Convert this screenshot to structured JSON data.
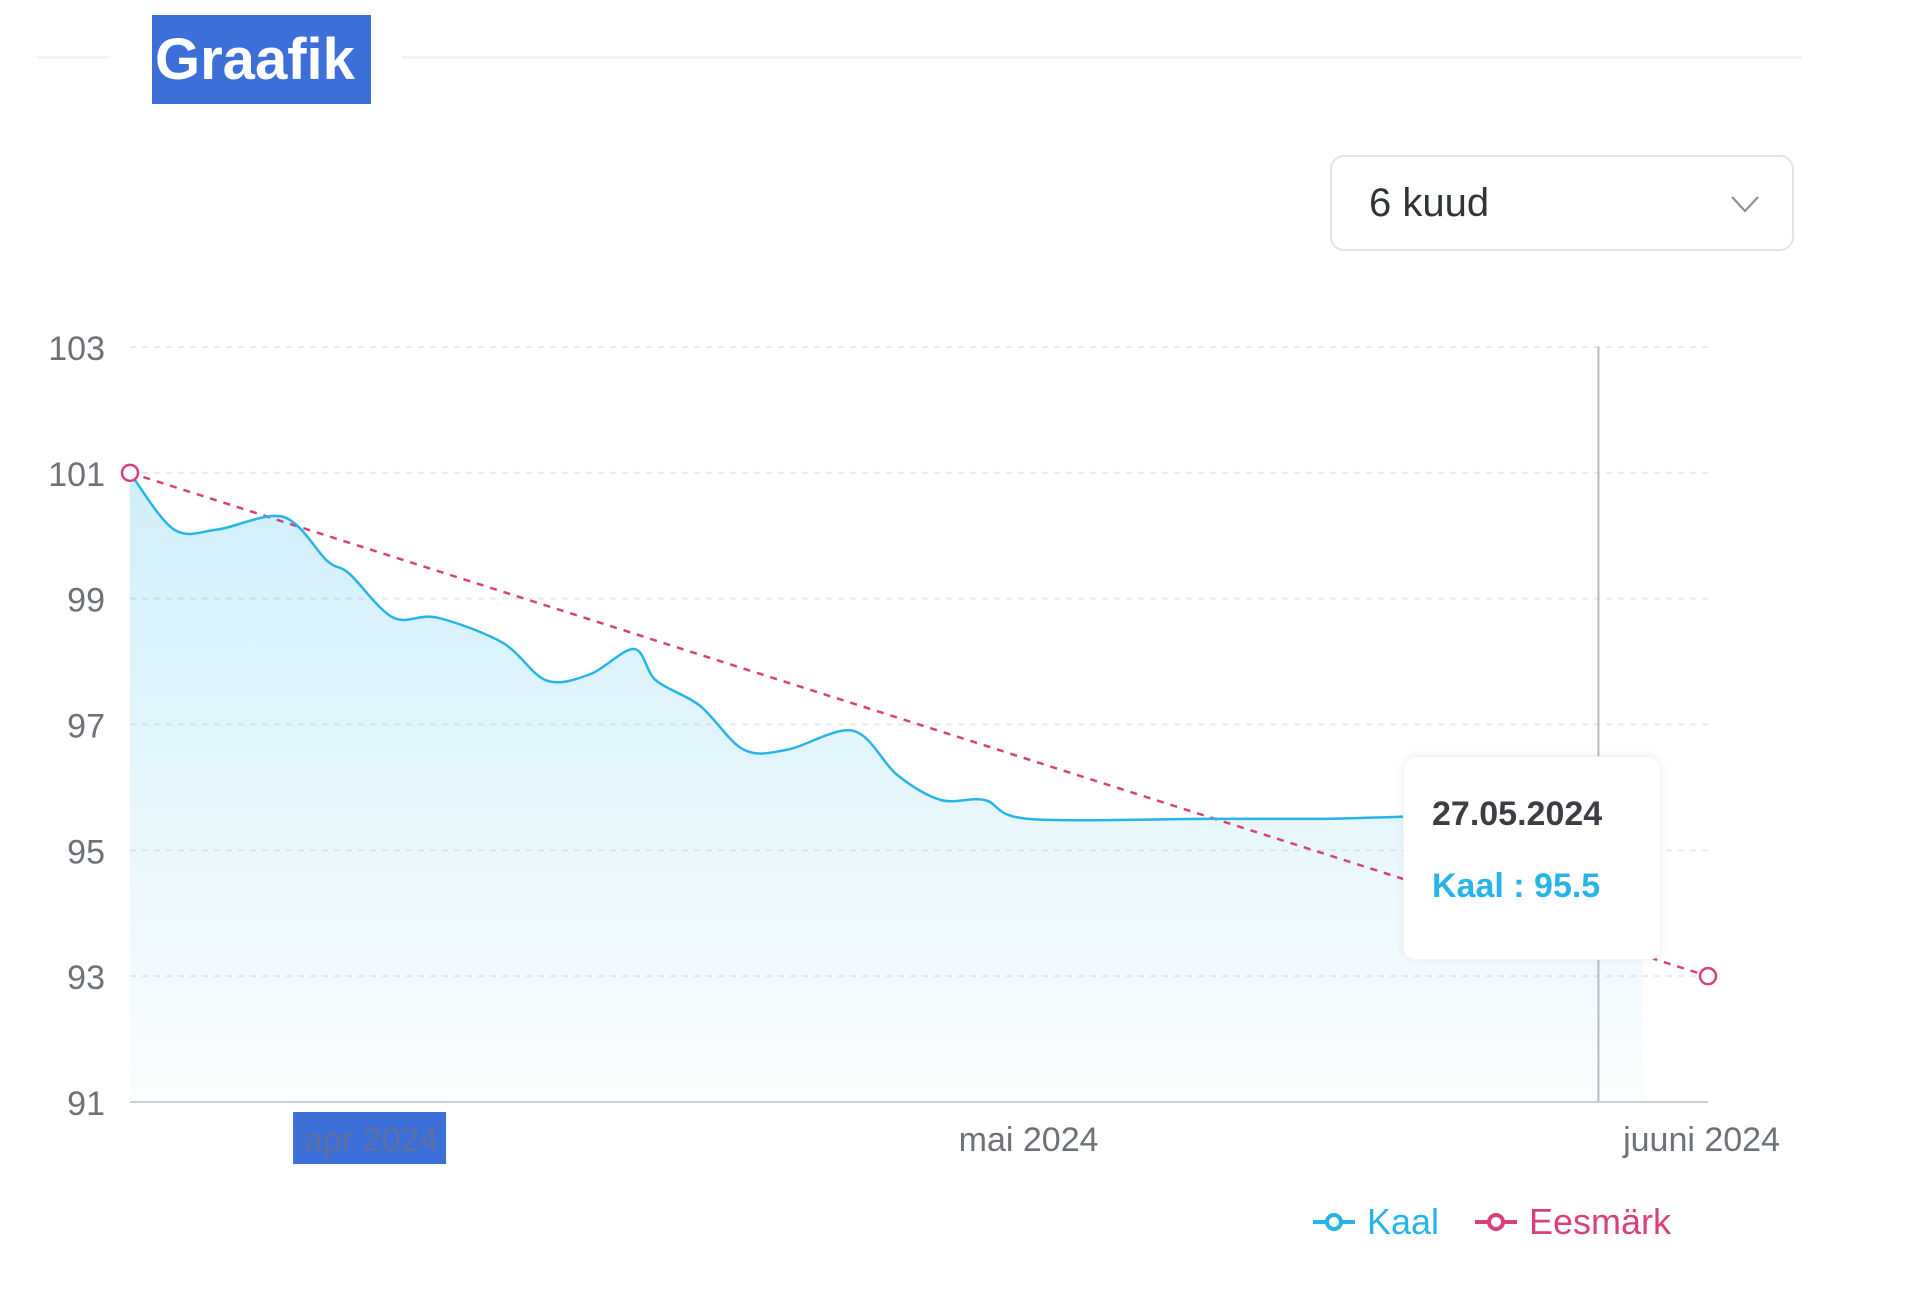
{
  "title": "Graafik",
  "range_select": {
    "value": "6 kuud",
    "icon": "chevron-down-icon"
  },
  "colors": {
    "weight": "#27b4e8",
    "goal": "#d8407f",
    "title_highlight": "#3c6fd8",
    "grid": "#e6e8eb"
  },
  "tooltip": {
    "date": "27.05.2024",
    "series_label": "Kaal",
    "value": "95.5",
    "text": "Kaal : 95.5"
  },
  "chart_data": {
    "type": "area",
    "x_axis": {
      "start": "2024-03-21",
      "end": "2024-06-01",
      "tick_labels": [
        {
          "label": "apr 2024",
          "date": "2024-04-01"
        },
        {
          "label": "mai 2024",
          "date": "2024-05-01"
        },
        {
          "label": "juuni 2024",
          "date": "2024-06-01"
        }
      ]
    },
    "y_axis": {
      "min": 91,
      "max": 103,
      "ticks": [
        91,
        93,
        95,
        97,
        99,
        101,
        103
      ]
    },
    "grid": true,
    "legend_placement": "bottom-right",
    "series": [
      {
        "name": "Kaal",
        "style": "solid-area",
        "points": [
          [
            "2024-03-21",
            101.0
          ],
          [
            "2024-03-23",
            100.1
          ],
          [
            "2024-03-25",
            100.1
          ],
          [
            "2024-03-28",
            100.3
          ],
          [
            "2024-03-30",
            99.6
          ],
          [
            "2024-03-31",
            99.4
          ],
          [
            "2024-04-02",
            98.7
          ],
          [
            "2024-04-04",
            98.7
          ],
          [
            "2024-04-07",
            98.3
          ],
          [
            "2024-04-09",
            97.7
          ],
          [
            "2024-04-11",
            97.8
          ],
          [
            "2024-04-13",
            98.2
          ],
          [
            "2024-04-14",
            97.7
          ],
          [
            "2024-04-16",
            97.3
          ],
          [
            "2024-04-18",
            96.6
          ],
          [
            "2024-04-20",
            96.6
          ],
          [
            "2024-04-23",
            96.9
          ],
          [
            "2024-04-25",
            96.2
          ],
          [
            "2024-04-27",
            95.8
          ],
          [
            "2024-04-29",
            95.8
          ],
          [
            "2024-05-01",
            95.5
          ],
          [
            "2024-05-09",
            95.5
          ],
          [
            "2024-05-14",
            95.5
          ],
          [
            "2024-05-27",
            95.5
          ],
          [
            "2024-05-29",
            94.5
          ]
        ]
      },
      {
        "name": "Eesmärk",
        "style": "dashed",
        "points": [
          [
            "2024-03-21",
            101.0
          ],
          [
            "2024-06-01",
            93.0
          ]
        ]
      }
    ],
    "highlighted_point": {
      "series": "Kaal",
      "date": "2024-05-27",
      "value": 95.5
    }
  },
  "legend": [
    {
      "name": "Kaal",
      "color": "#27b4e8"
    },
    {
      "name": "Eesmärk",
      "color": "#d8407f"
    }
  ]
}
